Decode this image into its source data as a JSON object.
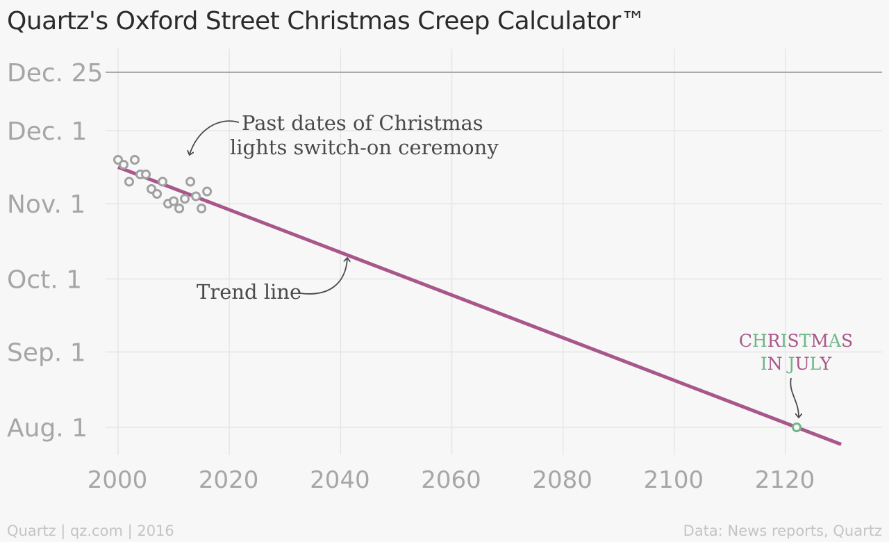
{
  "chart_data": {
    "type": "scatter",
    "title": "Quartz's Oxford Street Christmas Creep Calculator™",
    "xlim": [
      1996,
      2137
    ],
    "x_ticks": [
      2000,
      2020,
      2040,
      2060,
      2080,
      2100,
      2120
    ],
    "y_ticks": [
      {
        "label": "Aug. 1",
        "date": "08-01"
      },
      {
        "label": "Sep. 1",
        "date": "09-01"
      },
      {
        "label": "Oct. 1",
        "date": "10-01"
      },
      {
        "label": "Nov. 1",
        "date": "11-01"
      },
      {
        "label": "Dec. 1",
        "date": "12-01"
      },
      {
        "label": "Dec. 25",
        "date": "12-25"
      }
    ],
    "grid": true,
    "series": [
      {
        "type": "scatter",
        "points": [
          {
            "year": 2000,
            "date": "11-19"
          },
          {
            "year": 2001,
            "date": "11-17"
          },
          {
            "year": 2002,
            "date": "11-10"
          },
          {
            "year": 2003,
            "date": "11-19"
          },
          {
            "year": 2004,
            "date": "11-13"
          },
          {
            "year": 2005,
            "date": "11-13"
          },
          {
            "year": 2006,
            "date": "11-07"
          },
          {
            "year": 2007,
            "date": "11-05"
          },
          {
            "year": 2008,
            "date": "11-10"
          },
          {
            "year": 2009,
            "date": "11-01"
          },
          {
            "year": 2010,
            "date": "11-02"
          },
          {
            "year": 2011,
            "date": "10-30"
          },
          {
            "year": 2012,
            "date": "11-03"
          },
          {
            "year": 2013,
            "date": "11-10"
          },
          {
            "year": 2014,
            "date": "11-04"
          },
          {
            "year": 2015,
            "date": "10-30"
          },
          {
            "year": 2016,
            "date": "11-06"
          }
        ]
      },
      {
        "type": "line",
        "points": [
          {
            "year": 2000,
            "date": "11-16"
          },
          {
            "year": 2130,
            "date": "07-25"
          }
        ]
      }
    ],
    "highlight_point": {
      "year": 2122,
      "date": "08-01"
    },
    "annotations": [
      {
        "lines": [
          "Past dates of Christmas",
          "lights switch-on ceremony"
        ]
      },
      {
        "lines": [
          "Trend line"
        ]
      },
      {
        "lines": [
          [
            [
              "C",
              "p"
            ],
            [
              "H",
              "g"
            ],
            [
              "R",
              "p"
            ],
            [
              "I",
              "g"
            ],
            [
              "S",
              "p"
            ],
            [
              "T",
              "g"
            ],
            [
              "M",
              "p"
            ],
            [
              "A",
              "g"
            ],
            [
              "S",
              "p"
            ]
          ],
          [
            [
              "I",
              "g"
            ],
            [
              "N",
              "p"
            ],
            [
              " ",
              "p"
            ],
            [
              "J",
              "g"
            ],
            [
              "U",
              "p"
            ],
            [
              "L",
              "g"
            ],
            [
              "Y",
              "p"
            ]
          ]
        ]
      }
    ]
  },
  "colors": {
    "background": "#f7f7f7",
    "grid": "#e6e6e6",
    "christmas_line": "#aaaaaa",
    "points": "#a0a0a0",
    "trend": "#a8578a",
    "highlight": "#6fb58a",
    "annotation": "#4a4a4a",
    "xmas_purple": "#a8578a",
    "xmas_green": "#6fb58a"
  },
  "footer": {
    "left": "Quartz | qz.com | 2016",
    "right": "Data: News reports, Quartz"
  }
}
